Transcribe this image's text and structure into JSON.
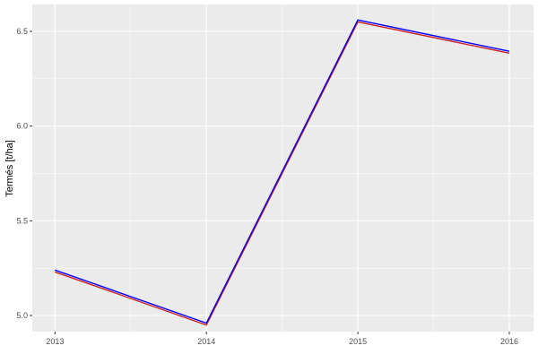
{
  "chart_data": {
    "type": "line",
    "title": "",
    "xlabel": "",
    "ylabel": "Termés [t/ha]",
    "x": [
      2013,
      2014,
      2015,
      2016
    ],
    "x_ticks": [
      "2013",
      "2014",
      "2015",
      "2016"
    ],
    "y_ticks": [
      "5.0",
      "5.5",
      "6.0",
      "6.5"
    ],
    "xlim": [
      2012.85,
      2016.16
    ],
    "ylim": [
      4.915,
      6.642
    ],
    "grid": true,
    "legend": "none",
    "series": [
      {
        "color": "#0000ff",
        "values": [
          5.24,
          4.96,
          6.56,
          6.395
        ]
      },
      {
        "color": "#cc2222",
        "values": [
          5.23,
          4.95,
          6.55,
          6.385
        ]
      }
    ],
    "panel_background": "#ebebeb",
    "grid_color": "#ffffff"
  }
}
